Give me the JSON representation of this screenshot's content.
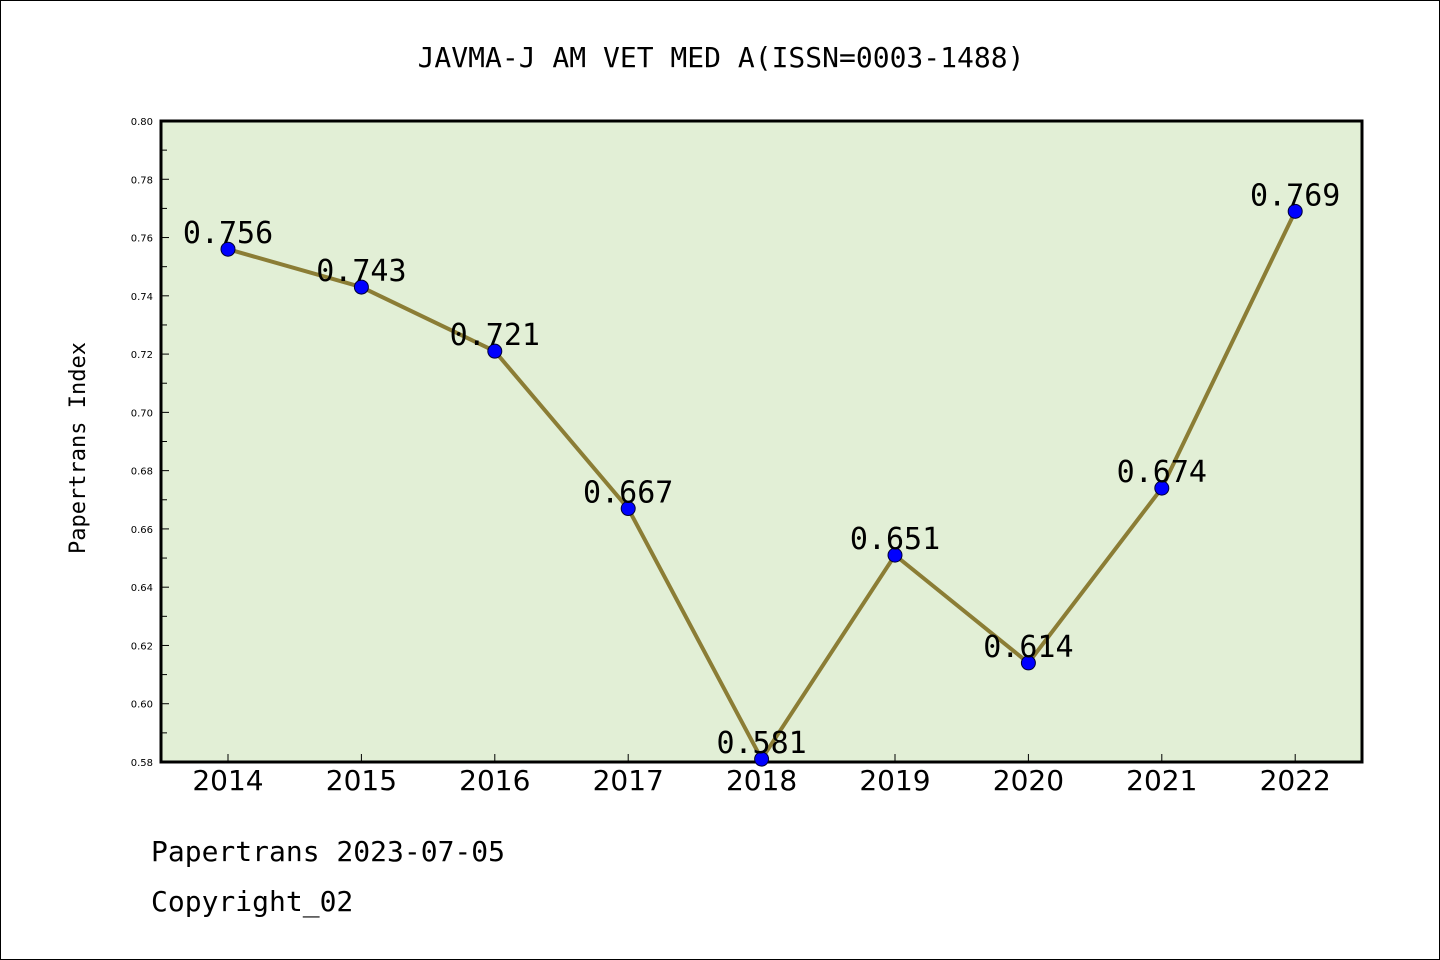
{
  "chart_data": {
    "type": "line",
    "title": "JAVMA-J AM VET MED A(ISSN=0003-1488)",
    "xlabel": "",
    "ylabel": "Papertrans Index",
    "categories": [
      "2014",
      "2015",
      "2016",
      "2017",
      "2018",
      "2019",
      "2020",
      "2021",
      "2022"
    ],
    "series": [
      {
        "values": [
          0.756,
          0.743,
          0.721,
          0.667,
          0.581,
          0.651,
          0.614,
          0.674,
          0.769
        ],
        "data_labels": [
          "0.756",
          "0.743",
          "0.721",
          "0.667",
          "0.581",
          "0.651",
          "0.614",
          "0.674",
          "0.769"
        ]
      }
    ],
    "ylim": [
      0.58,
      0.8
    ],
    "yticks": [
      "0.58",
      "0.60",
      "0.62",
      "0.64",
      "0.66",
      "0.68",
      "0.70",
      "0.72",
      "0.74",
      "0.76",
      "0.78",
      "0.80"
    ],
    "grid": false,
    "legend": "none",
    "colors": {
      "plot_background": "#e2efd6",
      "line": "#8b7d35",
      "marker": "#0000ff"
    }
  },
  "footer": {
    "line1": "Papertrans 2023-07-05",
    "line2": "Copyright_02"
  }
}
